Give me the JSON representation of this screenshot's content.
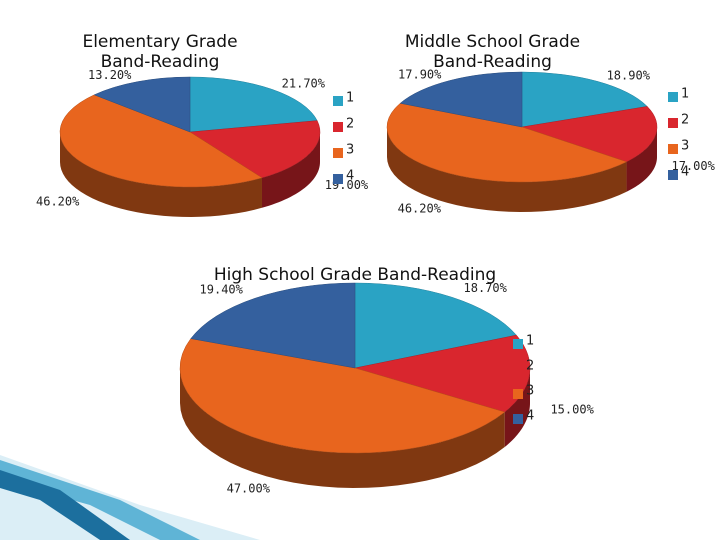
{
  "chart_data": [
    {
      "type": "pie",
      "title": "Elementary Grade Band-Reading",
      "categories": [
        "1",
        "2",
        "3",
        "4"
      ],
      "values": [
        21.7,
        19.0,
        46.2,
        13.2
      ],
      "value_labels": [
        "21.70%",
        "19.00%",
        "46.20%",
        "13.20%"
      ],
      "colors": [
        "#2aa3c4",
        "#d9262e",
        "#e8651e",
        "#34609e"
      ]
    },
    {
      "type": "pie",
      "title": "Middle School Grade Band-Reading",
      "categories": [
        "1",
        "2",
        "3",
        "4"
      ],
      "values": [
        18.9,
        17.0,
        46.2,
        17.9
      ],
      "value_labels": [
        "18.90%",
        "17.00%",
        "46.20%",
        "17.90%"
      ],
      "colors": [
        "#2aa3c4",
        "#d9262e",
        "#e8651e",
        "#34609e"
      ]
    },
    {
      "type": "pie",
      "title": "High School Grade Band-Reading",
      "categories": [
        "1",
        "2",
        "3",
        "4"
      ],
      "values": [
        18.7,
        15.0,
        47.0,
        19.4
      ],
      "value_labels": [
        "18.70%",
        "15.00%",
        "47.00%",
        "19.40%"
      ],
      "colors": [
        "#2aa3c4",
        "#d9262e",
        "#e8651e",
        "#34609e"
      ]
    }
  ]
}
